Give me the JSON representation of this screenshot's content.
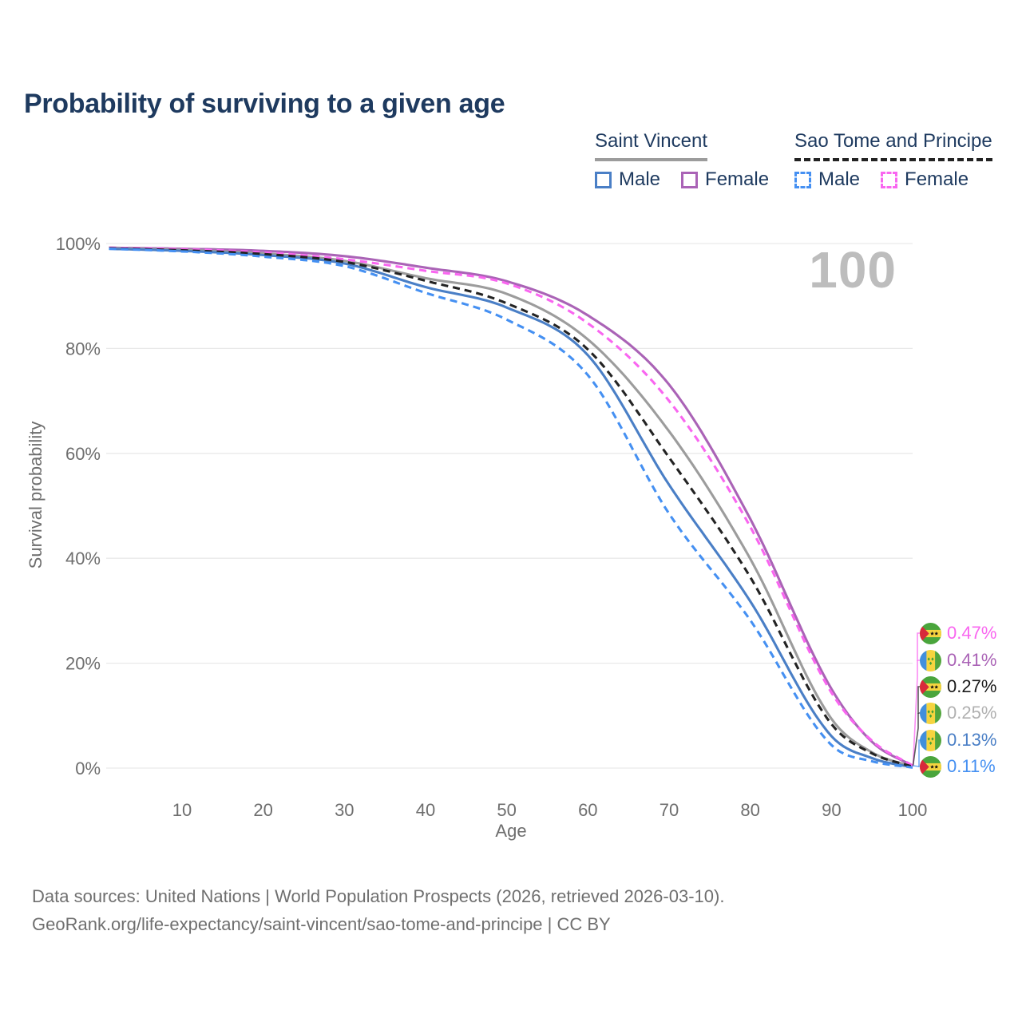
{
  "header": {
    "title": "Probability of surviving to a given age"
  },
  "legend": {
    "groups": [
      {
        "country": "Saint Vincent",
        "line_style": "solid",
        "underline_color": "#9c9c9c",
        "items": [
          {
            "label": "Male",
            "color": "#4a7fc6"
          },
          {
            "label": "Female",
            "color": "#aa63b6"
          }
        ]
      },
      {
        "country": "Sao Tome and Principe",
        "line_style": "dashed",
        "underline_color": "#232323",
        "items": [
          {
            "label": "Male",
            "color": "#4590f2"
          },
          {
            "label": "Female",
            "color": "#f966f0"
          }
        ]
      }
    ]
  },
  "chart_data": {
    "type": "line",
    "title": "Probability of surviving to a given age",
    "xlabel": "Age",
    "ylabel": "Survival probability",
    "xlim": [
      0,
      100
    ],
    "ylim": [
      0,
      100
    ],
    "grid": "horizontal",
    "legend_position": "top-right",
    "hover_age": "100",
    "x_ticks": {
      "values": [
        10,
        20,
        30,
        40,
        50,
        60,
        70,
        80,
        90,
        100
      ],
      "labels": [
        "10",
        "20",
        "30",
        "40",
        "50",
        "60",
        "70",
        "80",
        "90",
        "100"
      ]
    },
    "y_ticks": {
      "values": [
        0,
        20,
        40,
        60,
        80,
        100
      ],
      "labels": [
        "0%",
        "20%",
        "40%",
        "60%",
        "80%",
        "100%"
      ]
    },
    "x": [
      1,
      10,
      20,
      30,
      40,
      50,
      60,
      70,
      80,
      90,
      95,
      100
    ],
    "series": [
      {
        "name": "Saint Vincent Female",
        "country": "Saint Vincent",
        "sex": "Female",
        "line": "solid",
        "color": "#aa63b6",
        "values": [
          99.2,
          99.0,
          98.6,
          97.6,
          95.4,
          92.8,
          86.3,
          73.1,
          47.5,
          15.1,
          5.0,
          0.41
        ]
      },
      {
        "name": "Saint Vincent Both sexes",
        "country": "Saint Vincent",
        "sex": "Both",
        "line": "solid",
        "color": "#9c9c9c",
        "values": [
          99.1,
          98.8,
          98.1,
          96.7,
          93.4,
          90.4,
          81.7,
          64.2,
          39.9,
          9.4,
          3.0,
          0.25
        ]
      },
      {
        "name": "Saint Vincent Male",
        "country": "Saint Vincent",
        "sex": "Male",
        "line": "solid",
        "color": "#4a7fc6",
        "values": [
          99.0,
          98.6,
          97.8,
          96.2,
          91.7,
          87.8,
          78.7,
          54.0,
          31.8,
          6.1,
          1.9,
          0.13
        ]
      },
      {
        "name": "Sao Tome and Principe Female",
        "country": "Sao Tome and Principe",
        "sex": "Female",
        "line": "dashed",
        "color": "#f966f0",
        "values": [
          99.2,
          98.9,
          98.3,
          97.0,
          94.8,
          92.4,
          84.8,
          70.0,
          46.0,
          14.4,
          5.2,
          0.47
        ]
      },
      {
        "name": "Sao Tome and Principe Both sexes",
        "country": "Sao Tome and Principe",
        "sex": "Both",
        "line": "dashed",
        "color": "#232323",
        "values": [
          99.1,
          98.7,
          98.0,
          96.5,
          92.9,
          88.6,
          79.8,
          59.2,
          36.4,
          8.4,
          2.8,
          0.27
        ]
      },
      {
        "name": "Sao Tome and Principe Male",
        "country": "Sao Tome and Principe",
        "sex": "Male",
        "line": "dashed",
        "color": "#4590f2",
        "values": [
          99.0,
          98.5,
          97.5,
          95.7,
          90.6,
          85.5,
          74.9,
          48.5,
          28.2,
          4.4,
          1.3,
          0.11
        ]
      }
    ],
    "end_labels": [
      {
        "value": "0.47%",
        "color": "#f966f0",
        "flag": "sao-tome-and-principe",
        "series": "Sao Tome and Principe Female"
      },
      {
        "value": "0.41%",
        "color": "#aa63b6",
        "flag": "saint-vincent",
        "series": "Saint Vincent Female"
      },
      {
        "value": "0.27%",
        "color": "#1a1a1a",
        "flag": "sao-tome-and-principe",
        "series": "Sao Tome and Principe Both sexes"
      },
      {
        "value": "0.25%",
        "color": "#b0b0b0",
        "flag": "saint-vincent",
        "series": "Saint Vincent Both sexes"
      },
      {
        "value": "0.13%",
        "color": "#4a7fc6",
        "flag": "saint-vincent",
        "series": "Saint Vincent Male"
      },
      {
        "value": "0.11%",
        "color": "#4590f2",
        "flag": "sao-tome-and-principe",
        "series": "Sao Tome and Principe Male"
      }
    ]
  },
  "footer": {
    "line1": "Data sources: United Nations | World Population Prospects (2026, retrieved 2026-03-10).",
    "line2": "GeoRank.org/life-expectancy/saint-vincent/sao-tome-and-principe | CC BY"
  }
}
